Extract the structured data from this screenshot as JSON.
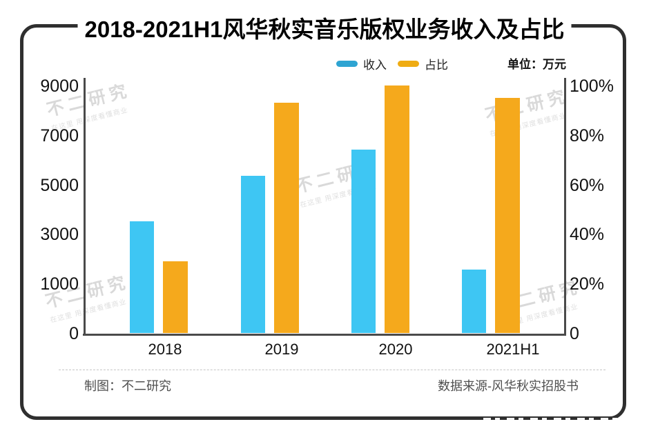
{
  "header": {
    "title": "2018-2021H1风华秋实音乐版权业务收入及占比",
    "unit_label": "单位：万元"
  },
  "legend": [
    {
      "label": "收入",
      "color": "#2EA4D2"
    },
    {
      "label": "占比",
      "color": "#EFAC13"
    }
  ],
  "chart_data": {
    "type": "bar",
    "title": "2018-2021H1风华秋实音乐版权业务收入及占比",
    "categories": [
      "2018",
      "2019",
      "2020",
      "2021H1"
    ],
    "series": [
      {
        "name": "收入",
        "axis": "left",
        "unit": "万元",
        "color": "#3EC6F3",
        "values": [
          3500,
          5350,
          6400,
          1550
        ]
      },
      {
        "name": "占比",
        "axis": "right",
        "unit": "%",
        "color": "#F5A91C",
        "values": [
          29,
          93,
          100,
          95
        ]
      }
    ],
    "left_axis": {
      "ticks": [
        0,
        1000,
        3000,
        5000,
        7000,
        9000
      ],
      "tick_labels": [
        "0",
        "1000",
        "3000",
        "5000",
        "7000",
        "9000"
      ]
    },
    "right_axis": {
      "ticks": [
        0,
        20,
        40,
        60,
        80,
        100
      ],
      "tick_labels": [
        "0",
        "20%",
        "40%",
        "60%",
        "80%",
        "100%"
      ]
    },
    "grid": false,
    "legend_position": "top"
  },
  "watermark": {
    "line1": "不二研究",
    "line2": "在这里 用深度看懂商业"
  },
  "footer": {
    "left": "制图：不二研究",
    "right": "数据来源-风华秋实招股书"
  }
}
